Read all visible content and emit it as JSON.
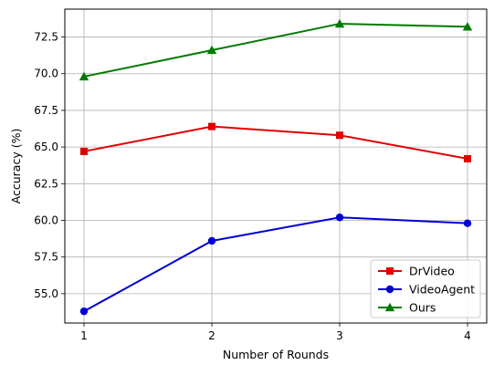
{
  "chart_data": {
    "type": "line",
    "xlabel": "Number of Rounds",
    "ylabel": "Accuracy (%)",
    "x": [
      1,
      2,
      3,
      4
    ],
    "x_ticks": [
      "1",
      "2",
      "3",
      "4"
    ],
    "xlim": [
      0.85,
      4.15
    ],
    "ylim": [
      53.0,
      74.4
    ],
    "y_ticks": [
      "55.0",
      "57.5",
      "60.0",
      "62.5",
      "65.0",
      "67.5",
      "70.0",
      "72.5"
    ],
    "grid": true,
    "legend_position": "lower-right",
    "series": [
      {
        "name": "DrVideo",
        "values": [
          64.7,
          66.4,
          65.8,
          64.2
        ],
        "color": "#e00000",
        "marker": "square"
      },
      {
        "name": "VideoAgent",
        "values": [
          53.8,
          58.6,
          60.2,
          59.8
        ],
        "color": "#0000d8",
        "marker": "circle"
      },
      {
        "name": "Ours",
        "values": [
          69.8,
          71.6,
          73.4,
          73.2
        ],
        "color": "#007a00",
        "marker": "triangle"
      }
    ]
  }
}
